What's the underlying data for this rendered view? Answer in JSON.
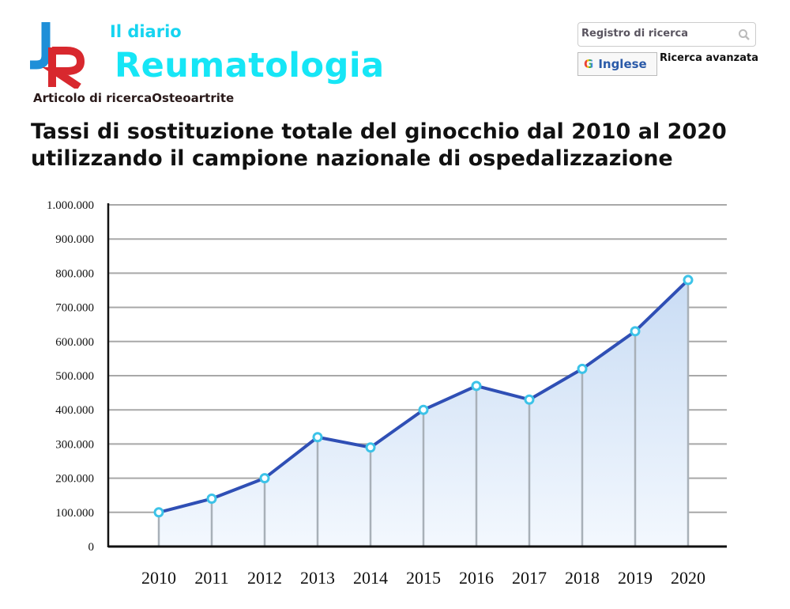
{
  "header": {
    "logo_text": "JR",
    "journal_small": "Il diario",
    "journal_name": "Reumatologia",
    "article_type": "Articolo di ricercaOsteoartrite"
  },
  "search": {
    "placeholder": "Registro di ricerca",
    "icon": "search-icon"
  },
  "language_button": {
    "label": "Inglese",
    "icon": "google-g-icon"
  },
  "advanced_search": "Ricerca avanzata",
  "colors": {
    "accent": "#16e6f6",
    "line": "#2f4fb5",
    "fill": "#dbe9f8",
    "marker": "#3cc3e8"
  },
  "chart_data": {
    "type": "area",
    "title": "Tassi di sostituzione totale del ginocchio dal 2010 al 2020 utilizzando il campione nazionale di ospedalizzazione",
    "xlabel": "",
    "ylabel": "",
    "categories": [
      "2010",
      "2011",
      "2012",
      "2013",
      "2014",
      "2015",
      "2016",
      "2017",
      "2018",
      "2019",
      "2020"
    ],
    "values": [
      100000,
      140000,
      200000,
      320000,
      290000,
      400000,
      470000,
      430000,
      520000,
      630000,
      780000
    ],
    "ylim": [
      0,
      1000000
    ],
    "yticks": [
      0,
      100000,
      200000,
      300000,
      400000,
      500000,
      600000,
      700000,
      800000,
      900000,
      1000000
    ],
    "ytick_labels": [
      "0",
      "100.000",
      "200.000",
      "300.000",
      "400.000",
      "500.000",
      "600.000",
      "700.000",
      "800.000",
      "900.000",
      "1.000.000"
    ],
    "grid": true,
    "legend": "none"
  }
}
